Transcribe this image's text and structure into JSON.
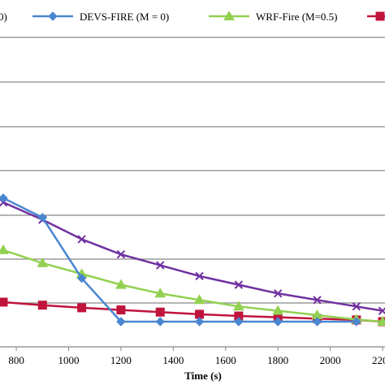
{
  "chart_data": {
    "type": "line",
    "xlabel": "Time (s)",
    "ylabel": "",
    "title": "",
    "xlim": [
      750,
      2200
    ],
    "ylim": [
      0,
      10
    ],
    "x_ticks": [
      800,
      1000,
      1200,
      1400,
      1600,
      1800,
      2000,
      2200
    ],
    "x_tick_labels": [
      "800",
      "1000",
      "1200",
      "1400",
      "1600",
      "1800",
      "2000",
      "2200"
    ],
    "grid": true,
    "legend_position": "top",
    "legend_entries": [
      {
        "label": "0)",
        "color": "#7030a0",
        "marker": "x"
      },
      {
        "label": "DEVS-FIRE (M = 0)",
        "color": "#4a86d0",
        "marker": "diamond"
      },
      {
        "label": "WRF-Fire (M=0.5)",
        "color": "#92d050",
        "marker": "triangle"
      },
      {
        "label": "",
        "color": "#c0143c",
        "marker": "square"
      }
    ],
    "series": [
      {
        "color": "#4a86d0",
        "marker": "diamond",
        "x": [
          750,
          900,
          1050,
          1200,
          1350,
          1500,
          1650,
          1800,
          1950,
          2100
        ],
        "y": [
          2.85,
          2.4,
          1.0,
          0.0,
          0.0,
          0.0,
          0.0,
          0.0,
          0.0,
          0.0
        ]
      },
      {
        "color": "#7030a0",
        "marker": "x",
        "x": [
          750,
          900,
          1050,
          1200,
          1350,
          1500,
          1650,
          1800,
          1950,
          2100,
          2200
        ],
        "y": [
          2.75,
          2.35,
          1.9,
          1.55,
          1.3,
          1.05,
          0.85,
          0.65,
          0.5,
          0.35,
          0.25
        ]
      },
      {
        "color": "#92d050",
        "marker": "triangle",
        "x": [
          750,
          900,
          1050,
          1200,
          1350,
          1500,
          1650,
          1800,
          1950,
          2100,
          2200
        ],
        "y": [
          1.65,
          1.35,
          1.1,
          0.85,
          0.65,
          0.5,
          0.35,
          0.25,
          0.15,
          0.05,
          0.0
        ]
      },
      {
        "color": "#c0143c",
        "marker": "square",
        "x": [
          750,
          900,
          1050,
          1200,
          1350,
          1500,
          1650,
          1800,
          1950,
          2100,
          2200
        ],
        "y": [
          0.45,
          0.38,
          0.32,
          0.27,
          0.22,
          0.17,
          0.13,
          0.1,
          0.07,
          0.04,
          0.0
        ]
      }
    ]
  }
}
